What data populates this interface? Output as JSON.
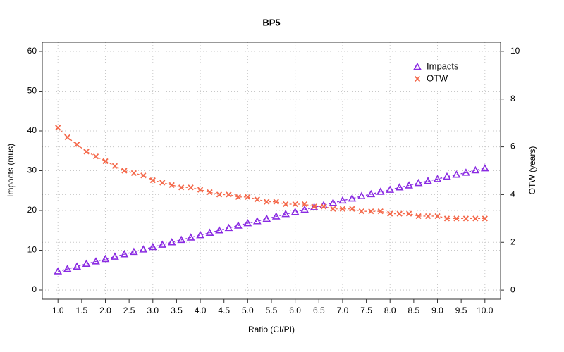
{
  "chart_data": {
    "type": "line",
    "title": "BP5",
    "x_label": "Ratio (CI/PI)",
    "y_label": "Impacts  (mus)",
    "y2_label": "OTW (years)",
    "x": [
      1,
      1.2,
      1.4,
      1.6,
      1.8,
      2,
      2.2,
      2.4,
      2.6,
      2.8,
      3,
      3.2,
      3.4,
      3.6,
      3.8,
      4,
      4.2,
      4.4,
      4.6,
      4.8,
      5,
      5.2,
      5.4,
      5.6,
      5.8,
      6,
      6.2,
      6.4,
      6.6,
      6.8,
      7,
      7.2,
      7.4,
      7.6,
      7.8,
      8,
      8.2,
      8.4,
      8.6,
      8.8,
      9,
      9.2,
      9.4,
      9.6,
      9.8,
      10
    ],
    "series": [
      {
        "name": "Impacts",
        "color": "#8a2be2",
        "marker": "triangle",
        "axis": "y",
        "values": [
          4.7,
          5.3,
          5.9,
          6.6,
          7.2,
          7.8,
          8.4,
          9.0,
          9.6,
          10.2,
          10.8,
          11.4,
          12.0,
          12.6,
          13.2,
          13.8,
          14.4,
          15.0,
          15.6,
          16.2,
          16.8,
          17.3,
          17.9,
          18.5,
          19.1,
          19.6,
          20.2,
          20.8,
          21.3,
          21.9,
          22.5,
          23.0,
          23.6,
          24.1,
          24.7,
          25.2,
          25.8,
          26.3,
          26.9,
          27.4,
          27.9,
          28.5,
          29.0,
          29.5,
          30.1,
          30.6
        ]
      },
      {
        "name": "OTW",
        "color": "#f4694b",
        "marker": "x",
        "axis": "y2",
        "values": [
          6.8,
          6.4,
          6.1,
          5.8,
          5.6,
          5.4,
          5.2,
          5.0,
          4.9,
          4.8,
          4.6,
          4.5,
          4.4,
          4.3,
          4.3,
          4.2,
          4.1,
          4.0,
          4.0,
          3.9,
          3.9,
          3.8,
          3.7,
          3.7,
          3.6,
          3.6,
          3.6,
          3.5,
          3.5,
          3.4,
          3.4,
          3.4,
          3.3,
          3.3,
          3.3,
          3.2,
          3.2,
          3.2,
          3.1,
          3.1,
          3.1,
          3.0,
          3.0,
          3.0,
          3.0,
          3.0
        ]
      }
    ],
    "xlim": [
      0.67,
      10.33
    ],
    "xticks": [
      {
        "value": 1,
        "label": "1.0"
      },
      1.5,
      {
        "value": 2,
        "label": "2.0"
      },
      2.5,
      {
        "value": 3,
        "label": "3.0"
      },
      3.5,
      {
        "value": 4,
        "label": "4.0"
      },
      4.5,
      {
        "value": 5,
        "label": "5.0"
      },
      5.5,
      {
        "value": 6,
        "label": "6.0"
      },
      6.5,
      {
        "value": 7,
        "label": "7.0"
      },
      7.5,
      {
        "value": 8,
        "label": "8.0"
      },
      8.5,
      {
        "value": 9,
        "label": "9.0"
      },
      9.5,
      {
        "value": 10,
        "label": "10.0"
      }
    ],
    "ylim": [
      -2.3,
      62.3
    ],
    "yticks": [
      0,
      10,
      20,
      30,
      40,
      50,
      60
    ],
    "y2lim": [
      -0.38,
      10.38
    ],
    "y2ticks": [
      0,
      2,
      4,
      6,
      8,
      10
    ],
    "grid": true,
    "legend": "top-right"
  }
}
